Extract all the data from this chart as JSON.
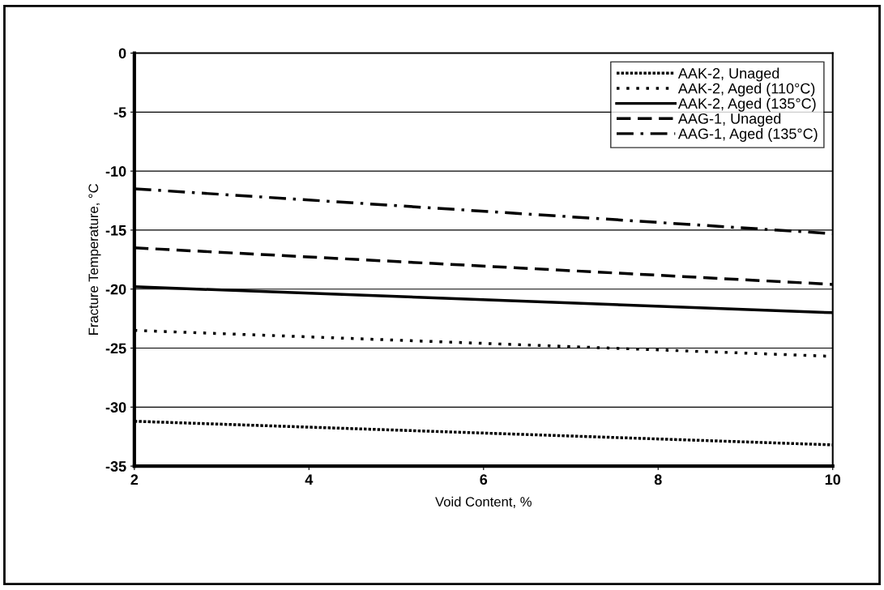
{
  "chart_data": {
    "type": "line",
    "xlabel": "Void Content, %",
    "ylabel": "Fracture Temperature, °C",
    "x": [
      2,
      10
    ],
    "series": [
      {
        "name": "AAK-2, Unaged",
        "color": "#000000",
        "line_style": "densely dotted",
        "values": [
          -31.2,
          -33.2
        ]
      },
      {
        "name": "AAK-2, Aged (110°C)",
        "color": "#000000",
        "line_style": "dotted",
        "values": [
          -23.5,
          -25.7
        ]
      },
      {
        "name": "AAK-2, Aged (135°C)",
        "color": "#000000",
        "line_style": "solid",
        "values": [
          -19.8,
          -22.0
        ]
      },
      {
        "name": "AAG-1, Unaged",
        "color": "#000000",
        "line_style": "dashed",
        "values": [
          -16.5,
          -19.6
        ]
      },
      {
        "name": "AAG-1, Aged (135°C)",
        "color": "#000000",
        "line_style": "dashdot",
        "values": [
          -11.5,
          -15.3
        ]
      }
    ],
    "xlim": [
      2,
      10
    ],
    "xticks": [
      2,
      4,
      6,
      8,
      10
    ],
    "ylim": [
      -35,
      0
    ],
    "yticks": [
      -35,
      -30,
      -25,
      -20,
      -15,
      -10,
      -5,
      0
    ],
    "grid": "y",
    "legend": "top right",
    "marker": "none"
  }
}
